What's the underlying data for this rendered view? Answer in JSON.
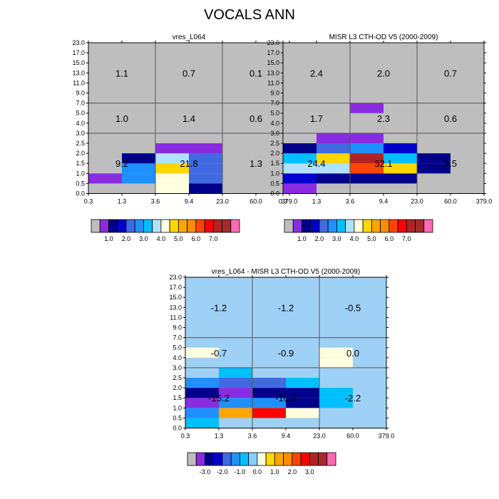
{
  "figure_title": "VOCALS ANN",
  "colors": {
    "background": "#ffffff",
    "missing": "#BEBEBE",
    "grid": "#555555",
    "text": "#000000"
  },
  "palettes": {
    "abs": [
      "#BEBEBE",
      "#8A2BE2",
      "#00008B",
      "#0000CD",
      "#4169E1",
      "#1E90FF",
      "#00BFFF",
      "#B0E2FF",
      "#FFFFE0",
      "#FFD700",
      "#FFA500",
      "#FF8C00",
      "#FF4500",
      "#FF0000",
      "#B22222",
      "#A52A2A",
      "#FF69B4"
    ],
    "diff": [
      "#BEBEBE",
      "#8A2BE2",
      "#00008B",
      "#0000CD",
      "#4169E1",
      "#1E90FF",
      "#00BFFF",
      "#87CEFA",
      "#FFFFE0",
      "#FFD700",
      "#FFA500",
      "#FF8C00",
      "#FF4500",
      "#FF0000",
      "#B22222",
      "#A52A2A",
      "#FF69B4"
    ]
  },
  "chart_data": [
    {
      "type": "heatmap",
      "title": "vres_L064",
      "x_tick_labels": [
        "0.3",
        "1.3",
        "3.6",
        "9.4",
        "23.0",
        "60.0",
        "379.0"
      ],
      "y_tick_labels": [
        "0.0",
        "0.5",
        "1.0",
        "1.5",
        "2.0",
        "2.5",
        "3.0",
        "4.0",
        "5.0",
        "7.0",
        "9.0",
        "11.0",
        "13.0",
        "15.0",
        "17.0",
        "23.0"
      ],
      "colorbar_labels": [
        "1.0",
        "2.0",
        "3.0",
        "4.0",
        "5.0",
        "6.0",
        "7.0"
      ],
      "colorbar_palette": "abs",
      "grid_x": [
        2,
        4
      ],
      "grid_y": [
        6,
        9
      ],
      "group_values": [
        {
          "x": 1,
          "y": 3,
          "text": "9.2"
        },
        {
          "x": 3,
          "y": 3,
          "text": "21.8"
        },
        {
          "x": 5,
          "y": 3,
          "text": "1.3"
        },
        {
          "x": 1,
          "y": 7.5,
          "text": "1.0"
        },
        {
          "x": 3,
          "y": 7.5,
          "text": "1.4"
        },
        {
          "x": 5,
          "y": 7.5,
          "text": "0.6"
        },
        {
          "x": 1,
          "y": 12,
          "text": "1.1"
        },
        {
          "x": 3,
          "y": 12,
          "text": "0.7"
        },
        {
          "x": 5,
          "y": 12,
          "text": "0.1"
        }
      ],
      "cells": [
        {
          "x": 0,
          "y": 1,
          "c": 1
        },
        {
          "x": 1,
          "y": 1,
          "c": 5
        },
        {
          "x": 1,
          "y": 2,
          "c": 5
        },
        {
          "x": 1,
          "y": 3,
          "c": 2
        },
        {
          "x": 2,
          "y": 0,
          "c": 8
        },
        {
          "x": 2,
          "y": 1,
          "c": 8
        },
        {
          "x": 2,
          "y": 2,
          "c": 9
        },
        {
          "x": 2,
          "y": 3,
          "c": 7
        },
        {
          "x": 2,
          "y": 4,
          "c": 1
        },
        {
          "x": 3,
          "y": 0,
          "c": 2
        },
        {
          "x": 3,
          "y": 1,
          "c": 4
        },
        {
          "x": 3,
          "y": 2,
          "c": 4
        },
        {
          "x": 3,
          "y": 3,
          "c": 4
        },
        {
          "x": 3,
          "y": 4,
          "c": 1
        }
      ]
    },
    {
      "type": "heatmap",
      "title": "MISR L3 CTH-OD V5 (2000-2009)",
      "x_tick_labels": [
        "0.3",
        "1.3",
        "3.6",
        "9.4",
        "23.0",
        "60.0",
        "379.0"
      ],
      "y_tick_labels": [
        "0.0",
        "0.5",
        "1.0",
        "1.5",
        "2.0",
        "2.5",
        "3.0",
        "4.0",
        "5.0",
        "7.0",
        "9.0",
        "11.0",
        "13.0",
        "15.0",
        "17.0",
        "23.0"
      ],
      "colorbar_labels": [
        "1.0",
        "2.0",
        "3.0",
        "4.0",
        "5.0",
        "6.0",
        "7.0"
      ],
      "colorbar_palette": "abs",
      "grid_x": [
        2,
        4
      ],
      "grid_y": [
        6,
        9
      ],
      "group_values": [
        {
          "x": 1,
          "y": 3,
          "text": "24.4"
        },
        {
          "x": 3,
          "y": 3,
          "text": "32.1"
        },
        {
          "x": 5,
          "y": 3,
          "text": "3.5"
        },
        {
          "x": 1,
          "y": 7.5,
          "text": "1.7"
        },
        {
          "x": 3,
          "y": 7.5,
          "text": "2.3"
        },
        {
          "x": 5,
          "y": 7.5,
          "text": "0.6"
        },
        {
          "x": 1,
          "y": 12,
          "text": "2.4"
        },
        {
          "x": 3,
          "y": 12,
          "text": "2.0"
        },
        {
          "x": 5,
          "y": 12,
          "text": "0.7"
        }
      ],
      "cells": [
        {
          "x": 0,
          "y": 0,
          "c": 1
        },
        {
          "x": 0,
          "y": 1,
          "c": 3
        },
        {
          "x": 0,
          "y": 2,
          "c": 7
        },
        {
          "x": 0,
          "y": 3,
          "c": 6
        },
        {
          "x": 0,
          "y": 4,
          "c": 2
        },
        {
          "x": 1,
          "y": 1,
          "c": 2
        },
        {
          "x": 1,
          "y": 2,
          "c": 7
        },
        {
          "x": 1,
          "y": 3,
          "c": 9
        },
        {
          "x": 1,
          "y": 4,
          "c": 4
        },
        {
          "x": 1,
          "y": 5,
          "c": 1
        },
        {
          "x": 2,
          "y": 1,
          "c": 2
        },
        {
          "x": 2,
          "y": 2,
          "c": 12
        },
        {
          "x": 2,
          "y": 3,
          "c": 14
        },
        {
          "x": 2,
          "y": 4,
          "c": 5
        },
        {
          "x": 2,
          "y": 5,
          "c": 1
        },
        {
          "x": 2,
          "y": 8,
          "c": 1
        },
        {
          "x": 3,
          "y": 1,
          "c": 2
        },
        {
          "x": 3,
          "y": 2,
          "c": 9
        },
        {
          "x": 3,
          "y": 3,
          "c": 6
        },
        {
          "x": 3,
          "y": 4,
          "c": 3
        },
        {
          "x": 4,
          "y": 2,
          "c": 2
        },
        {
          "x": 4,
          "y": 3,
          "c": 2
        }
      ]
    },
    {
      "type": "heatmap",
      "title": "vres_L064 - MISR L3 CTH-OD V5 (2000-2009)",
      "x_tick_labels": [
        "0.3",
        "1.3",
        "3.6",
        "9.4",
        "23.0",
        "60.0",
        "379.0"
      ],
      "y_tick_labels": [
        "0.0",
        "0.5",
        "1.0",
        "1.5",
        "2.0",
        "2.5",
        "3.0",
        "4.0",
        "5.0",
        "7.0",
        "9.0",
        "11.0",
        "13.0",
        "15.0",
        "17.0",
        "23.0"
      ],
      "colorbar_labels": [
        "-3.0",
        "-2.0",
        "-1.0",
        "0.0",
        "1.0",
        "2.0",
        "3.0"
      ],
      "colorbar_palette": "diff",
      "background_color": "#9FD0F5",
      "grid_x": [
        2,
        4
      ],
      "grid_y": [
        6,
        9
      ],
      "group_values": [
        {
          "x": 1,
          "y": 3,
          "text": "-15.2"
        },
        {
          "x": 3,
          "y": 3,
          "text": "-10.3"
        },
        {
          "x": 5,
          "y": 3,
          "text": "-2.2"
        },
        {
          "x": 1,
          "y": 7.5,
          "text": "-0.7"
        },
        {
          "x": 3,
          "y": 7.5,
          "text": "-0.9"
        },
        {
          "x": 5,
          "y": 7.5,
          "text": "0.0"
        },
        {
          "x": 1,
          "y": 12,
          "text": "-1.2"
        },
        {
          "x": 3,
          "y": 12,
          "text": "-1.2"
        },
        {
          "x": 5,
          "y": 12,
          "text": "-0.5"
        }
      ],
      "cells": [
        {
          "x": 0,
          "y": 0,
          "c": 6
        },
        {
          "x": 0,
          "y": 1,
          "c": 5
        },
        {
          "x": 0,
          "y": 2,
          "c": 1
        },
        {
          "x": 0,
          "y": 3,
          "c": 2
        },
        {
          "x": 0,
          "y": 4,
          "c": 5
        },
        {
          "x": 0,
          "y": 7,
          "c": 8
        },
        {
          "x": 1,
          "y": 1,
          "c": 10
        },
        {
          "x": 1,
          "y": 2,
          "c": 5
        },
        {
          "x": 1,
          "y": 3,
          "c": 1
        },
        {
          "x": 1,
          "y": 4,
          "c": 4
        },
        {
          "x": 1,
          "y": 5,
          "c": 6
        },
        {
          "x": 2,
          "y": 1,
          "c": 13
        },
        {
          "x": 2,
          "y": 2,
          "c": 5
        },
        {
          "x": 2,
          "y": 3,
          "c": 2
        },
        {
          "x": 2,
          "y": 4,
          "c": 4
        },
        {
          "x": 3,
          "y": 1,
          "c": 8
        },
        {
          "x": 3,
          "y": 2,
          "c": 2
        },
        {
          "x": 3,
          "y": 3,
          "c": 2
        },
        {
          "x": 3,
          "y": 4,
          "c": 6
        },
        {
          "x": 4,
          "y": 2,
          "c": 6
        },
        {
          "x": 4,
          "y": 3,
          "c": 6
        },
        {
          "x": 4,
          "y": 7,
          "c": 8
        },
        {
          "x": 4,
          "y": 6,
          "c": 8
        }
      ]
    }
  ]
}
